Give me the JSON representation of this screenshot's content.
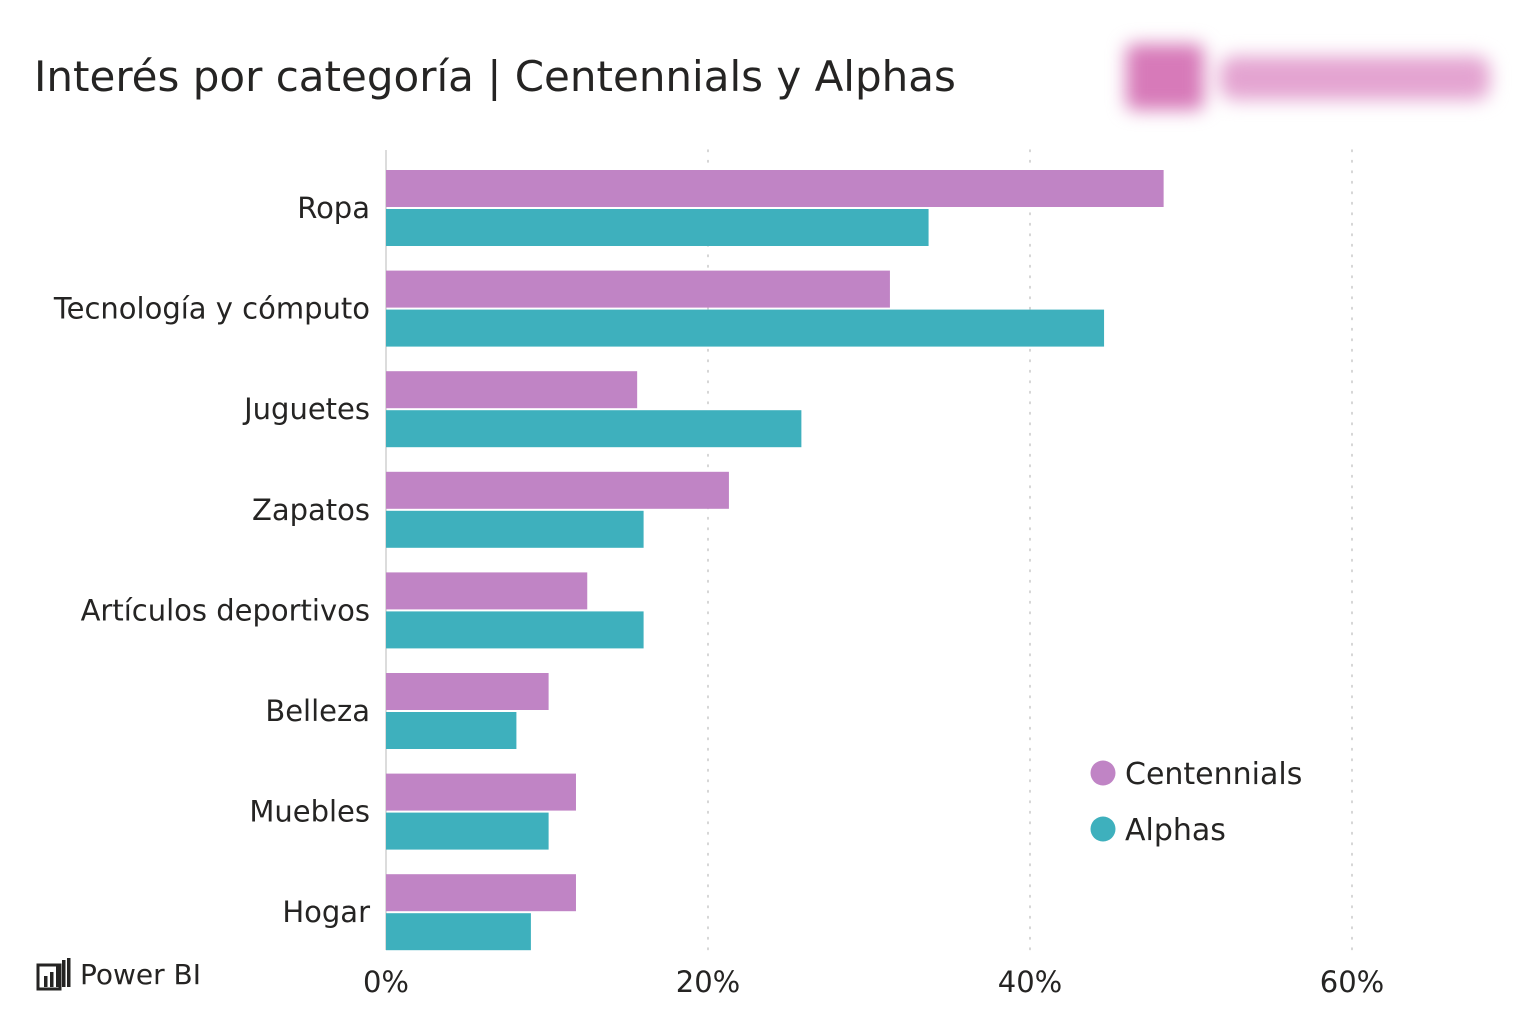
{
  "title": "Interés por categoría | Centennials y Alphas",
  "footer": {
    "brand_label": "Power BI",
    "brand_icon": "power-bi-icon"
  },
  "colors": {
    "centennials": "#c084c5",
    "alphas": "#3eb0bd",
    "gridline": "#c8c8c8",
    "axis": "#d0d0d0",
    "text": "#252423"
  },
  "chart_data": {
    "type": "bar",
    "orientation": "horizontal",
    "title": "Interés por categoría | Centennials y Alphas",
    "xlabel": "",
    "ylabel": "",
    "categories": [
      "Ropa",
      "Tecnología y cómputo",
      "Juguetes",
      "Zapatos",
      "Artículos deportivos",
      "Belleza",
      "Muebles",
      "Hogar"
    ],
    "series": [
      {
        "name": "Centennials",
        "color": "#c084c5",
        "values": [
          48.3,
          31.3,
          15.6,
          21.3,
          12.5,
          10.1,
          11.8,
          11.8
        ]
      },
      {
        "name": "Alphas",
        "color": "#3eb0bd",
        "values": [
          33.7,
          44.6,
          25.8,
          16.0,
          16.0,
          8.1,
          10.1,
          9.0
        ]
      }
    ],
    "xlim": [
      0,
      70
    ],
    "xticks": [
      0,
      20,
      40,
      60
    ],
    "tick_labels": [
      "0%",
      "20%",
      "40%",
      "60%"
    ],
    "grid": true,
    "legend_position": "bottom-right"
  }
}
